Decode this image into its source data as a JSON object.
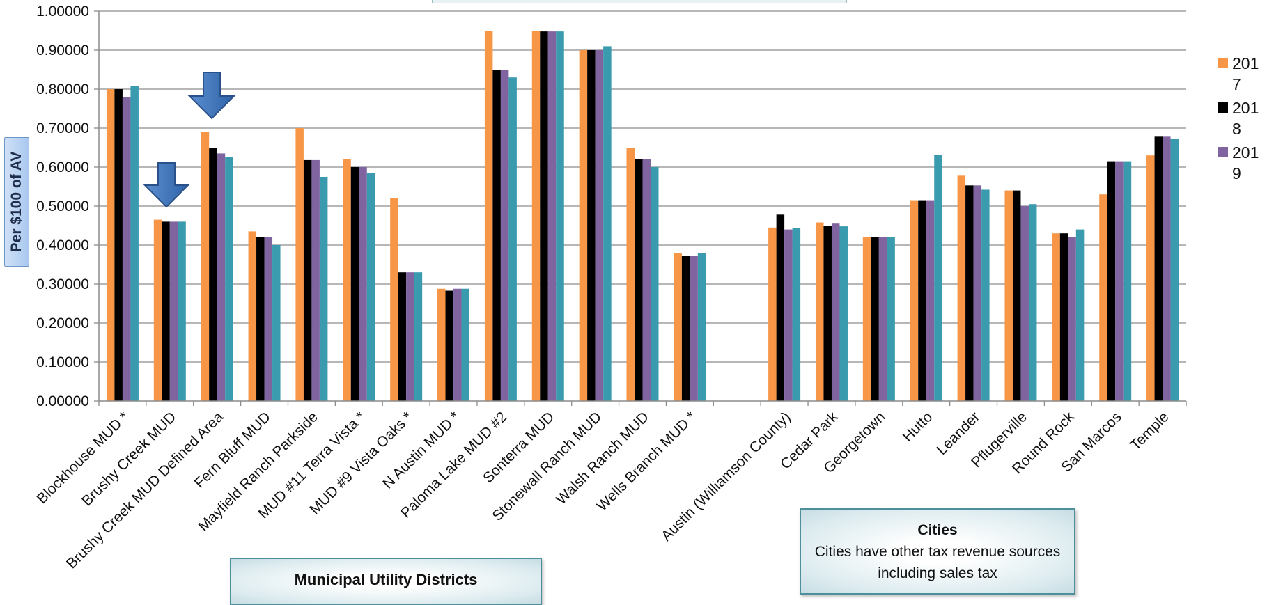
{
  "chart_data": {
    "type": "bar",
    "ylabel": "Per $100 of AV",
    "ylim": [
      0,
      1.0
    ],
    "yticks": [
      "0.00000",
      "0.10000",
      "0.20000",
      "0.30000",
      "0.40000",
      "0.50000",
      "0.60000",
      "0.70000",
      "0.80000",
      "0.90000",
      "1.00000"
    ],
    "grid": true,
    "legend_position": "right",
    "categories": [
      "Blockhouse MUD *",
      "Brushy Creek MUD",
      "Brushy Creek MUD Defined Area",
      "Fern Bluff MUD",
      "Mayfield Ranch Parkside",
      "MUD #11 Terra Vista *",
      "MUD #9 Vista Oaks *",
      "N Austin MUD *",
      "Paloma Lake MUD #2",
      "Sonterra MUD",
      "Stonewall Ranch MUD",
      "Walsh Ranch MUD",
      "Wells Branch MUD *",
      "",
      "Austin (Williamson County)",
      "Cedar Park",
      "Georgetown",
      "Hutto",
      "Leander",
      "Pflugerville",
      "Round Rock",
      "San Marcos",
      "Temple"
    ],
    "series": [
      {
        "name": "2017",
        "color": "#f79646",
        "values": [
          0.8,
          0.465,
          0.69,
          0.435,
          0.7,
          0.62,
          0.52,
          0.288,
          0.95,
          0.95,
          0.9,
          0.65,
          0.38,
          null,
          0.445,
          0.458,
          0.42,
          0.515,
          0.578,
          0.54,
          0.43,
          0.53,
          0.63
        ]
      },
      {
        "name": "2018",
        "color": "#000000",
        "values": [
          0.8,
          0.46,
          0.65,
          0.42,
          0.618,
          0.6,
          0.33,
          0.283,
          0.85,
          0.948,
          0.9,
          0.62,
          0.373,
          null,
          0.478,
          0.45,
          0.42,
          0.515,
          0.553,
          0.54,
          0.43,
          0.615,
          0.678
        ]
      },
      {
        "name": "2019",
        "color": "#7f64a0",
        "values": [
          0.78,
          0.46,
          0.635,
          0.42,
          0.618,
          0.6,
          0.33,
          0.288,
          0.85,
          0.948,
          0.9,
          0.62,
          0.373,
          null,
          0.44,
          0.455,
          0.42,
          0.515,
          0.553,
          0.5,
          0.42,
          0.615,
          0.678
        ]
      },
      {
        "name": "",
        "color": "#3a9aae",
        "values": [
          0.808,
          0.46,
          0.625,
          0.4,
          0.575,
          0.585,
          0.33,
          0.288,
          0.83,
          0.948,
          0.91,
          0.6,
          0.38,
          null,
          0.443,
          0.448,
          0.42,
          0.632,
          0.542,
          0.505,
          0.44,
          0.615,
          0.673
        ]
      }
    ],
    "legend_entries": [
      "2017",
      "2018",
      "2019"
    ],
    "annotations": {
      "mud_group": "Municipal Utility Districts",
      "cities_title": "Cities",
      "cities_note": "Cities have other tax revenue sources including sales tax"
    }
  }
}
